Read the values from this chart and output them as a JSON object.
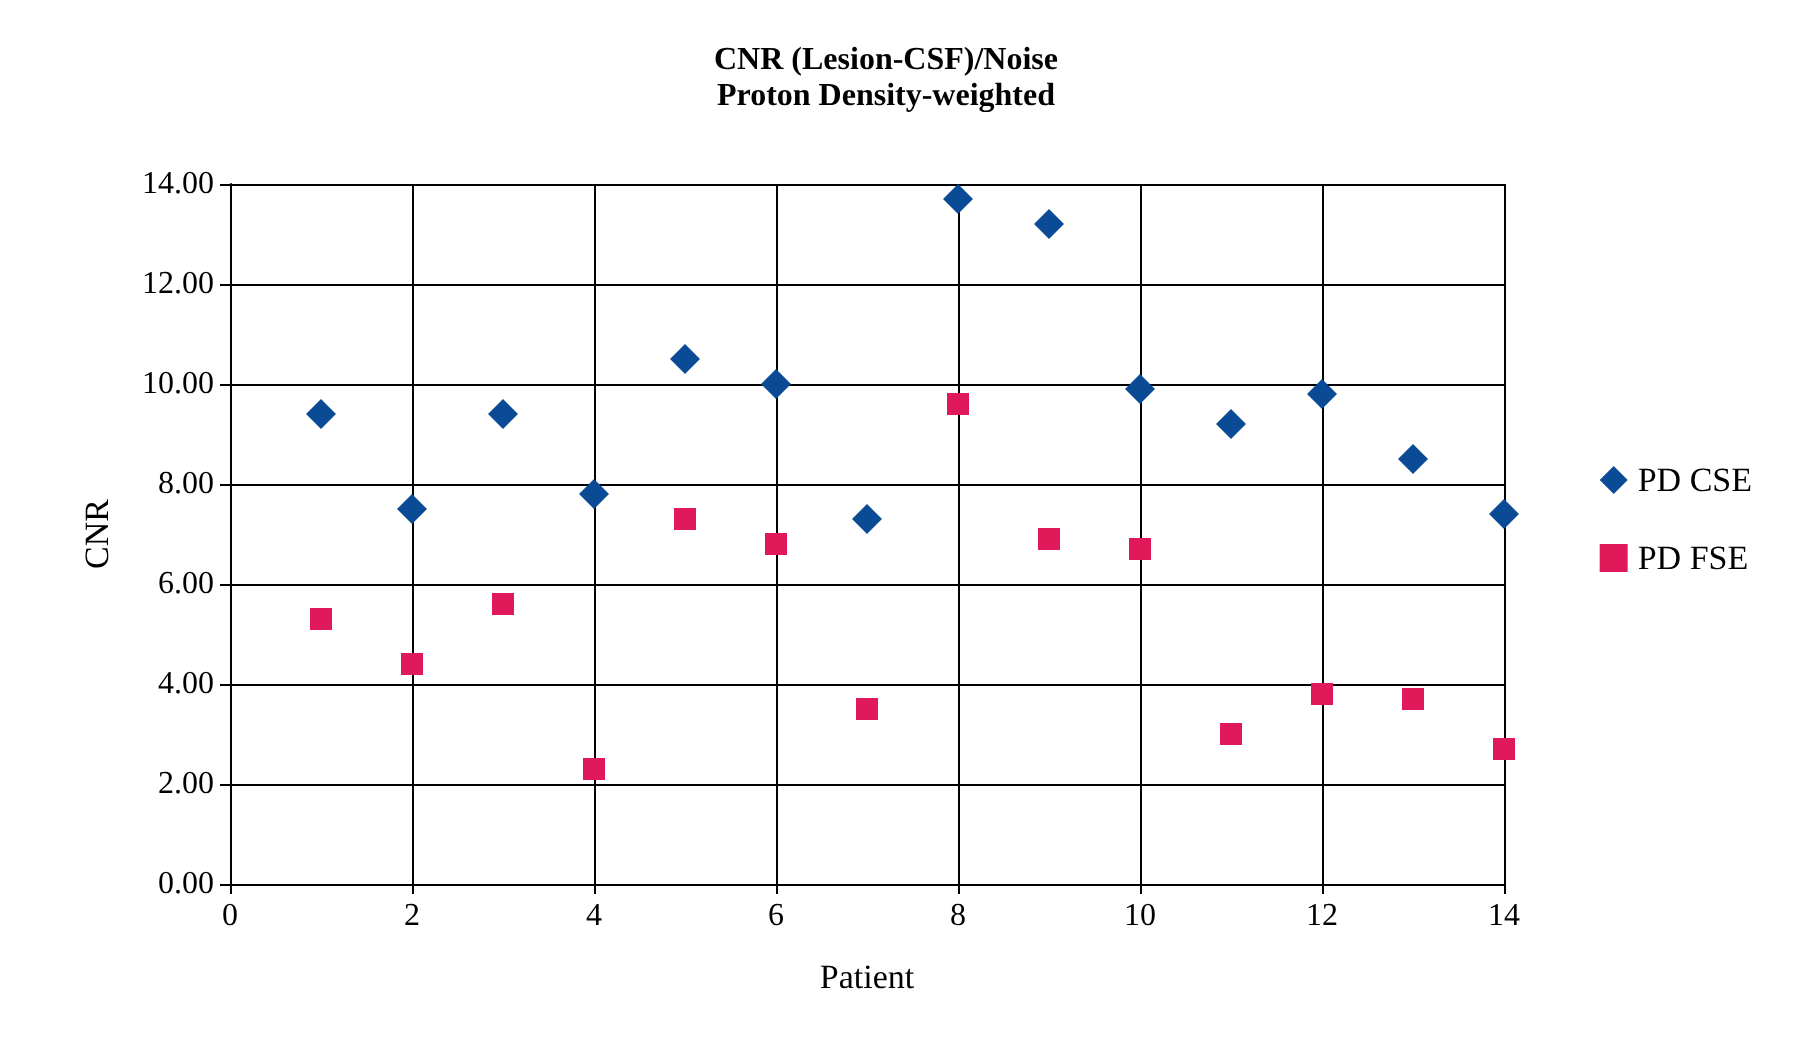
{
  "chart_data": {
    "type": "scatter",
    "title": "CNR (Lesion-CSF)/Noise\nProton Density-weighted",
    "xlabel": "Patient",
    "ylabel": "CNR",
    "x": [
      1,
      2,
      3,
      4,
      5,
      6,
      7,
      8,
      9,
      10,
      11,
      12,
      13,
      14
    ],
    "series": [
      {
        "name": "PD CSE",
        "color": "#0b4a95",
        "marker": "diamond",
        "values": [
          9.4,
          7.5,
          9.4,
          7.8,
          10.5,
          10.0,
          7.3,
          13.7,
          13.2,
          9.9,
          9.2,
          9.8,
          8.5,
          7.4
        ]
      },
      {
        "name": "PD FSE",
        "color": "#e0195a",
        "marker": "square",
        "values": [
          5.3,
          4.4,
          5.6,
          2.3,
          7.3,
          6.8,
          3.5,
          9.6,
          6.9,
          6.7,
          3.0,
          3.8,
          3.7,
          2.7
        ]
      }
    ],
    "xlim": [
      0,
      14
    ],
    "xticks": [
      0,
      2,
      4,
      6,
      8,
      10,
      12,
      14
    ],
    "ylim": [
      0,
      14
    ],
    "yticks": [
      {
        "value": 0,
        "label": "0.00"
      },
      {
        "value": 2,
        "label": "2.00"
      },
      {
        "value": 4,
        "label": "4.00"
      },
      {
        "value": 6,
        "label": "6.00"
      },
      {
        "value": 8,
        "label": "8.00"
      },
      {
        "value": 10,
        "label": "10.00"
      },
      {
        "value": 12,
        "label": "12.00"
      },
      {
        "value": 14,
        "label": "14.00"
      }
    ],
    "grid": true,
    "legend": "right"
  }
}
